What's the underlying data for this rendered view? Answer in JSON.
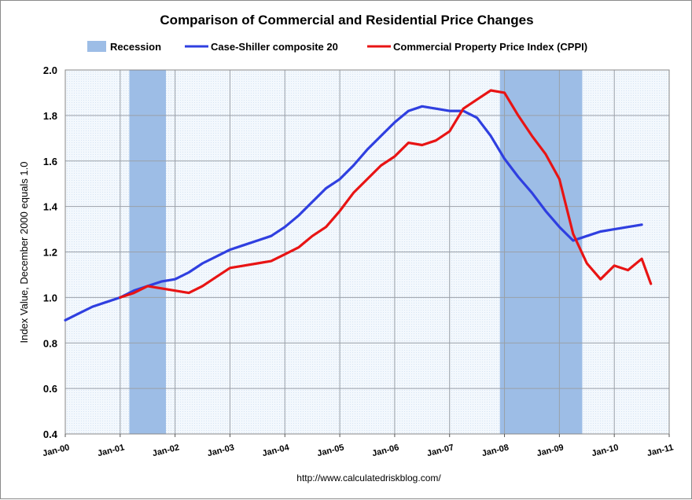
{
  "chart_data": {
    "type": "line",
    "title": "Comparison of Commercial and Residential Price Changes",
    "xlabel": "",
    "ylabel": "Index Value, December 2000 equals 1.0",
    "source": "http://www.calculatedriskblog.com/",
    "x_tick_labels": [
      "Jan-00",
      "Jan-01",
      "Jan-02",
      "Jan-03",
      "Jan-04",
      "Jan-05",
      "Jan-06",
      "Jan-07",
      "Jan-08",
      "Jan-09",
      "Jan-10",
      "Jan-11"
    ],
    "x_range": [
      "2000-01",
      "2011-01"
    ],
    "ylim": [
      0.4,
      2.0
    ],
    "y_ticks": [
      "0.4",
      "0.6",
      "0.8",
      "1.0",
      "1.2",
      "1.4",
      "1.6",
      "1.8",
      "2.0"
    ],
    "grid": true,
    "legend_position": "top",
    "recession_label": "Recession",
    "recession_color": "#9dbde6",
    "recessions": [
      [
        "2001-03",
        "2001-11"
      ],
      [
        "2007-12",
        "2009-06"
      ]
    ],
    "series": [
      {
        "name": "Case-Shiller composite 20",
        "color": "#2f3fe0",
        "x": [
          "2000-01",
          "2000-04",
          "2000-07",
          "2000-10",
          "2001-01",
          "2001-04",
          "2001-07",
          "2001-10",
          "2002-01",
          "2002-04",
          "2002-07",
          "2002-10",
          "2003-01",
          "2003-04",
          "2003-07",
          "2003-10",
          "2004-01",
          "2004-04",
          "2004-07",
          "2004-10",
          "2005-01",
          "2005-04",
          "2005-07",
          "2005-10",
          "2006-01",
          "2006-04",
          "2006-07",
          "2006-10",
          "2007-01",
          "2007-04",
          "2007-07",
          "2007-10",
          "2008-01",
          "2008-04",
          "2008-07",
          "2008-10",
          "2009-01",
          "2009-04",
          "2009-07",
          "2009-10",
          "2010-01",
          "2010-04",
          "2010-07"
        ],
        "values": [
          0.9,
          0.93,
          0.96,
          0.98,
          1.0,
          1.03,
          1.05,
          1.07,
          1.08,
          1.11,
          1.15,
          1.18,
          1.21,
          1.23,
          1.25,
          1.27,
          1.31,
          1.36,
          1.42,
          1.48,
          1.52,
          1.58,
          1.65,
          1.71,
          1.77,
          1.82,
          1.84,
          1.83,
          1.82,
          1.82,
          1.79,
          1.71,
          1.61,
          1.53,
          1.46,
          1.38,
          1.31,
          1.25,
          1.27,
          1.29,
          1.3,
          1.31,
          1.32
        ]
      },
      {
        "name": "Commercial Property Price Index (CPPI)",
        "color": "#e81414",
        "x": [
          "2001-01",
          "2001-04",
          "2001-07",
          "2001-10",
          "2002-01",
          "2002-04",
          "2002-07",
          "2002-10",
          "2003-01",
          "2003-04",
          "2003-07",
          "2003-10",
          "2004-01",
          "2004-04",
          "2004-07",
          "2004-10",
          "2005-01",
          "2005-04",
          "2005-07",
          "2005-10",
          "2006-01",
          "2006-04",
          "2006-07",
          "2006-10",
          "2007-01",
          "2007-04",
          "2007-07",
          "2007-10",
          "2008-01",
          "2008-04",
          "2008-07",
          "2008-10",
          "2009-01",
          "2009-04",
          "2009-07",
          "2009-10",
          "2010-01",
          "2010-04",
          "2010-07",
          "2010-09"
        ],
        "values": [
          1.0,
          1.02,
          1.05,
          1.04,
          1.03,
          1.02,
          1.05,
          1.09,
          1.13,
          1.14,
          1.15,
          1.16,
          1.19,
          1.22,
          1.27,
          1.31,
          1.38,
          1.46,
          1.52,
          1.58,
          1.62,
          1.68,
          1.67,
          1.69,
          1.73,
          1.83,
          1.87,
          1.91,
          1.9,
          1.8,
          1.71,
          1.63,
          1.52,
          1.28,
          1.15,
          1.08,
          1.14,
          1.12,
          1.17,
          1.06
        ]
      }
    ]
  }
}
